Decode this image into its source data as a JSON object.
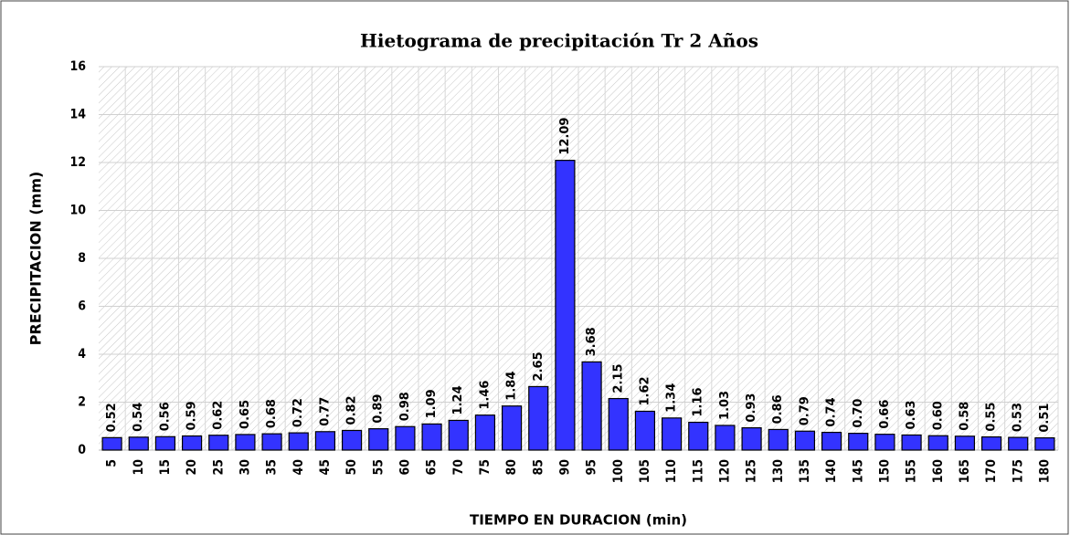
{
  "chart_data": {
    "type": "bar",
    "title": "Hietograma de precipitación Tr 2  Años",
    "x_label": "TIEMPO EN DURACION  (min)",
    "y_label": "PRECIPITACION  (mm)",
    "categories": [
      "5",
      "10",
      "15",
      "20",
      "25",
      "30",
      "35",
      "40",
      "45",
      "50",
      "55",
      "60",
      "65",
      "70",
      "75",
      "80",
      "85",
      "90",
      "95",
      "100",
      "105",
      "110",
      "115",
      "120",
      "125",
      "130",
      "135",
      "140",
      "145",
      "150",
      "155",
      "160",
      "165",
      "170",
      "175",
      "180"
    ],
    "values": [
      0.52,
      0.54,
      0.56,
      0.59,
      0.62,
      0.65,
      0.68,
      0.72,
      0.77,
      0.82,
      0.89,
      0.98,
      1.09,
      1.24,
      1.46,
      1.84,
      2.65,
      12.09,
      3.68,
      2.15,
      1.62,
      1.34,
      1.16,
      1.03,
      0.93,
      0.86,
      0.79,
      0.74,
      0.7,
      0.66,
      0.63,
      0.6,
      0.58,
      0.55,
      0.53,
      0.51
    ],
    "value_labels": [
      "0.52",
      "0.54",
      "0.56",
      "0.59",
      "0.62",
      "0.65",
      "0.68",
      "0.72",
      "0.77",
      "0.82",
      "0.89",
      "0.98",
      "1.09",
      "1.24",
      "1.46",
      "1.84",
      "2.65",
      "12.09",
      "3.68",
      "2.15",
      "1.62",
      "1.34",
      "1.16",
      "1.03",
      "0.93",
      "0.86",
      "0.79",
      "0.74",
      "0.70",
      "0.66",
      "0.63",
      "0.60",
      "0.58",
      "0.55",
      "0.53",
      "0.51"
    ],
    "color": "#3333ff",
    "ylim": [
      0,
      16
    ],
    "yticks": [
      0,
      2,
      4,
      6,
      8,
      10,
      12,
      14,
      16
    ],
    "grid": true
  }
}
